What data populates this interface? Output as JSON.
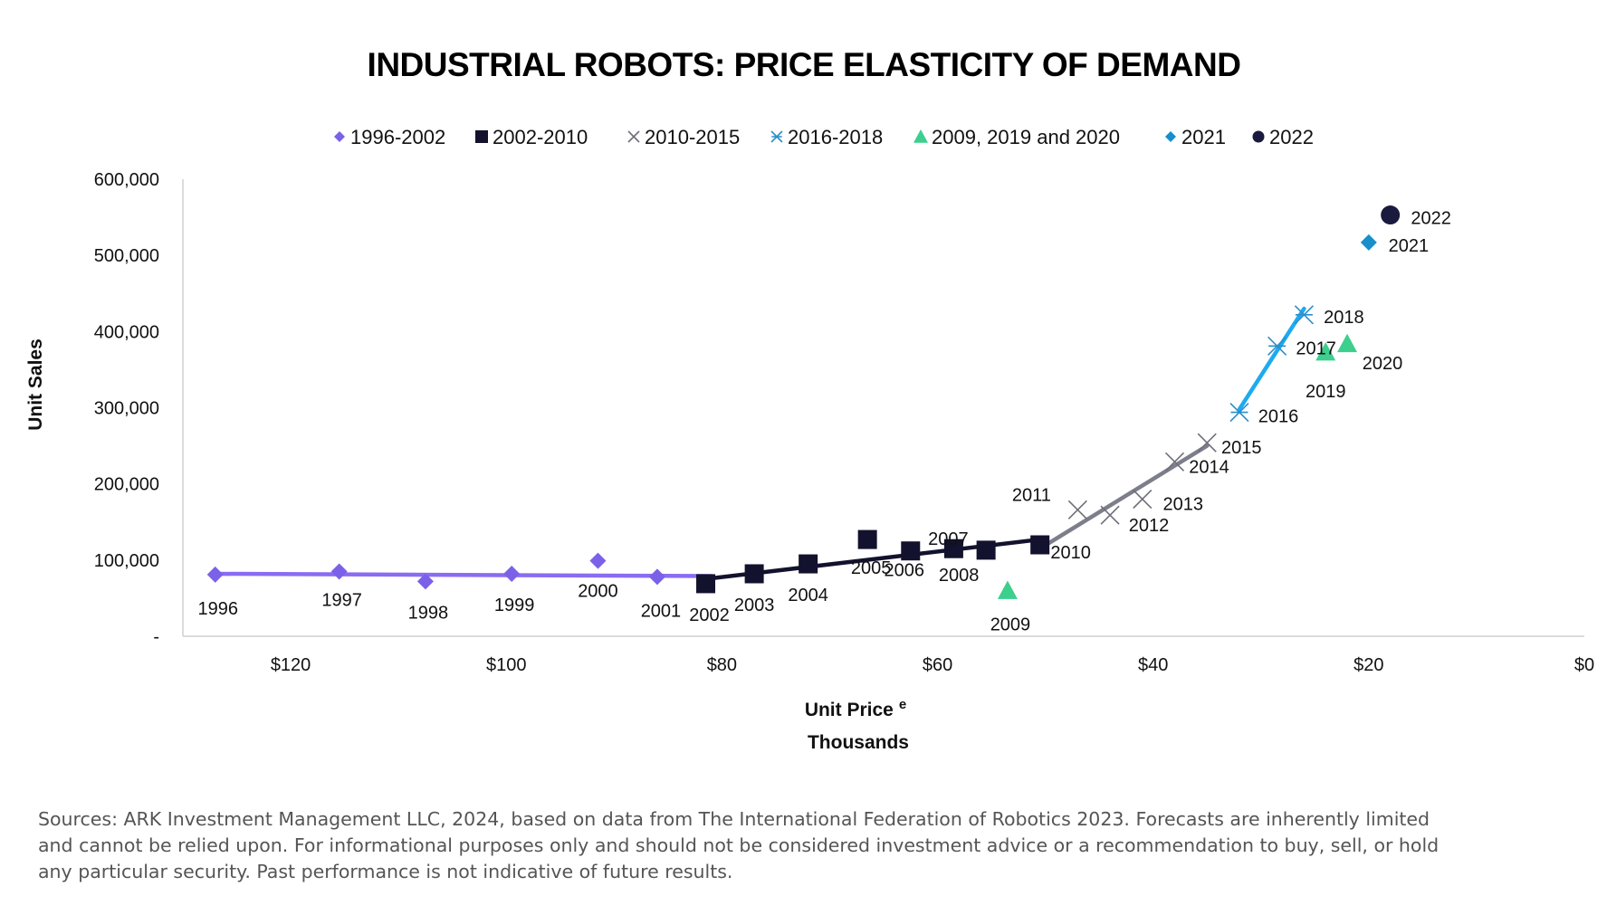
{
  "chart_data": {
    "type": "scatter",
    "title": "INDUSTRIAL ROBOTS: PRICE ELASTICITY OF DEMAND",
    "xlabel": "Unit Price",
    "xlabel_superscript": "e",
    "xlabel_units": "Thousands",
    "ylabel": "Unit Sales",
    "x_reversed": true,
    "xlim": [
      130,
      0
    ],
    "ylim": [
      0,
      600000
    ],
    "x_ticks": [
      {
        "value": 120,
        "label": "$120"
      },
      {
        "value": 100,
        "label": "$100"
      },
      {
        "value": 80,
        "label": "$80"
      },
      {
        "value": 60,
        "label": "$60"
      },
      {
        "value": 40,
        "label": "$40"
      },
      {
        "value": 20,
        "label": "$20"
      },
      {
        "value": 0,
        "label": "$0"
      }
    ],
    "y_ticks": [
      {
        "value": 0,
        "label": "-"
      },
      {
        "value": 100000,
        "label": "100,000"
      },
      {
        "value": 200000,
        "label": "200,000"
      },
      {
        "value": 300000,
        "label": "300,000"
      },
      {
        "value": 400000,
        "label": "400,000"
      },
      {
        "value": 500000,
        "label": "500,000"
      },
      {
        "value": 600000,
        "label": "600,000"
      }
    ],
    "grid": false,
    "legend_position": "top",
    "series": [
      {
        "name": "1996-2002",
        "marker": "diamond",
        "color": "#7B61E8",
        "trendline": {
          "x": [
            127,
            81
          ],
          "y": [
            82000,
            79000
          ],
          "color": "#8A6CF2"
        },
        "points": [
          {
            "label": "1996",
            "x": 127,
            "y": 81000
          },
          {
            "label": "1997",
            "x": 115.5,
            "y": 85000
          },
          {
            "label": "1998",
            "x": 107.5,
            "y": 72000
          },
          {
            "label": "1999",
            "x": 99.5,
            "y": 82000
          },
          {
            "label": "2000",
            "x": 91.5,
            "y": 99000
          },
          {
            "label": "2001",
            "x": 86,
            "y": 78000
          }
        ]
      },
      {
        "name": "2002-2010",
        "marker": "square",
        "color": "#12122E",
        "trendline": {
          "x": [
            81,
            50.5
          ],
          "y": [
            76000,
            127000
          ],
          "color": "#12122E"
        },
        "points": [
          {
            "label": "2002",
            "x": 81.5,
            "y": 69000
          },
          {
            "label": "2003",
            "x": 77,
            "y": 82000
          },
          {
            "label": "2004",
            "x": 72,
            "y": 95000
          },
          {
            "label": "2005",
            "x": 66.5,
            "y": 127000
          },
          {
            "label": "2006",
            "x": 62.5,
            "y": 112000
          },
          {
            "label": "2007",
            "x": 58.5,
            "y": 115000
          },
          {
            "label": "2008",
            "x": 55.5,
            "y": 113000
          },
          {
            "label": "2010",
            "x": 50.5,
            "y": 120000
          }
        ]
      },
      {
        "name": "2010-2015",
        "marker": "x",
        "color": "#6F6F7A",
        "trendline": {
          "x": [
            50.5,
            35
          ],
          "y": [
            115000,
            250000
          ],
          "color": "#7D7E8C"
        },
        "points": [
          {
            "label": "2011",
            "x": 47,
            "y": 166000
          },
          {
            "label": "2012",
            "x": 44,
            "y": 159000
          },
          {
            "label": "2013",
            "x": 41,
            "y": 180000
          },
          {
            "label": "2014",
            "x": 38,
            "y": 229000
          },
          {
            "label": "2015",
            "x": 35,
            "y": 254000
          }
        ]
      },
      {
        "name": "2016-2018",
        "marker": "asterisk",
        "color": "#2A8FC9",
        "trendline": {
          "x": [
            32,
            26
          ],
          "y": [
            298000,
            430000
          ],
          "color": "#1EAAF0"
        },
        "points": [
          {
            "label": "2016",
            "x": 32,
            "y": 294000
          },
          {
            "label": "2017",
            "x": 28.5,
            "y": 381000
          },
          {
            "label": "2018",
            "x": 26,
            "y": 422000
          }
        ]
      },
      {
        "name": "2009, 2019 and 2020",
        "marker": "triangle",
        "color": "#3CCF8E",
        "points": [
          {
            "label": "2009",
            "x": 53.5,
            "y": 60000
          },
          {
            "label": "2019",
            "x": 24,
            "y": 373000
          },
          {
            "label": "2020",
            "x": 22,
            "y": 384000
          }
        ]
      },
      {
        "name": "2021",
        "marker": "diamond",
        "color": "#168FCB",
        "points": [
          {
            "label": "2021",
            "x": 20,
            "y": 517000
          }
        ]
      },
      {
        "name": "2022",
        "marker": "circle",
        "color": "#1A1A3E",
        "points": [
          {
            "label": "2022",
            "x": 18,
            "y": 553000
          }
        ]
      }
    ]
  },
  "source_note": "Sources: ARK Investment Management LLC, 2024, based on data from The International Federation of Robotics 2023. Forecasts are inherently limited and cannot be relied upon. For informational purposes only and should not be considered investment advice or a recommendation to buy, sell, or hold any particular security. Past performance is not indicative of future results."
}
